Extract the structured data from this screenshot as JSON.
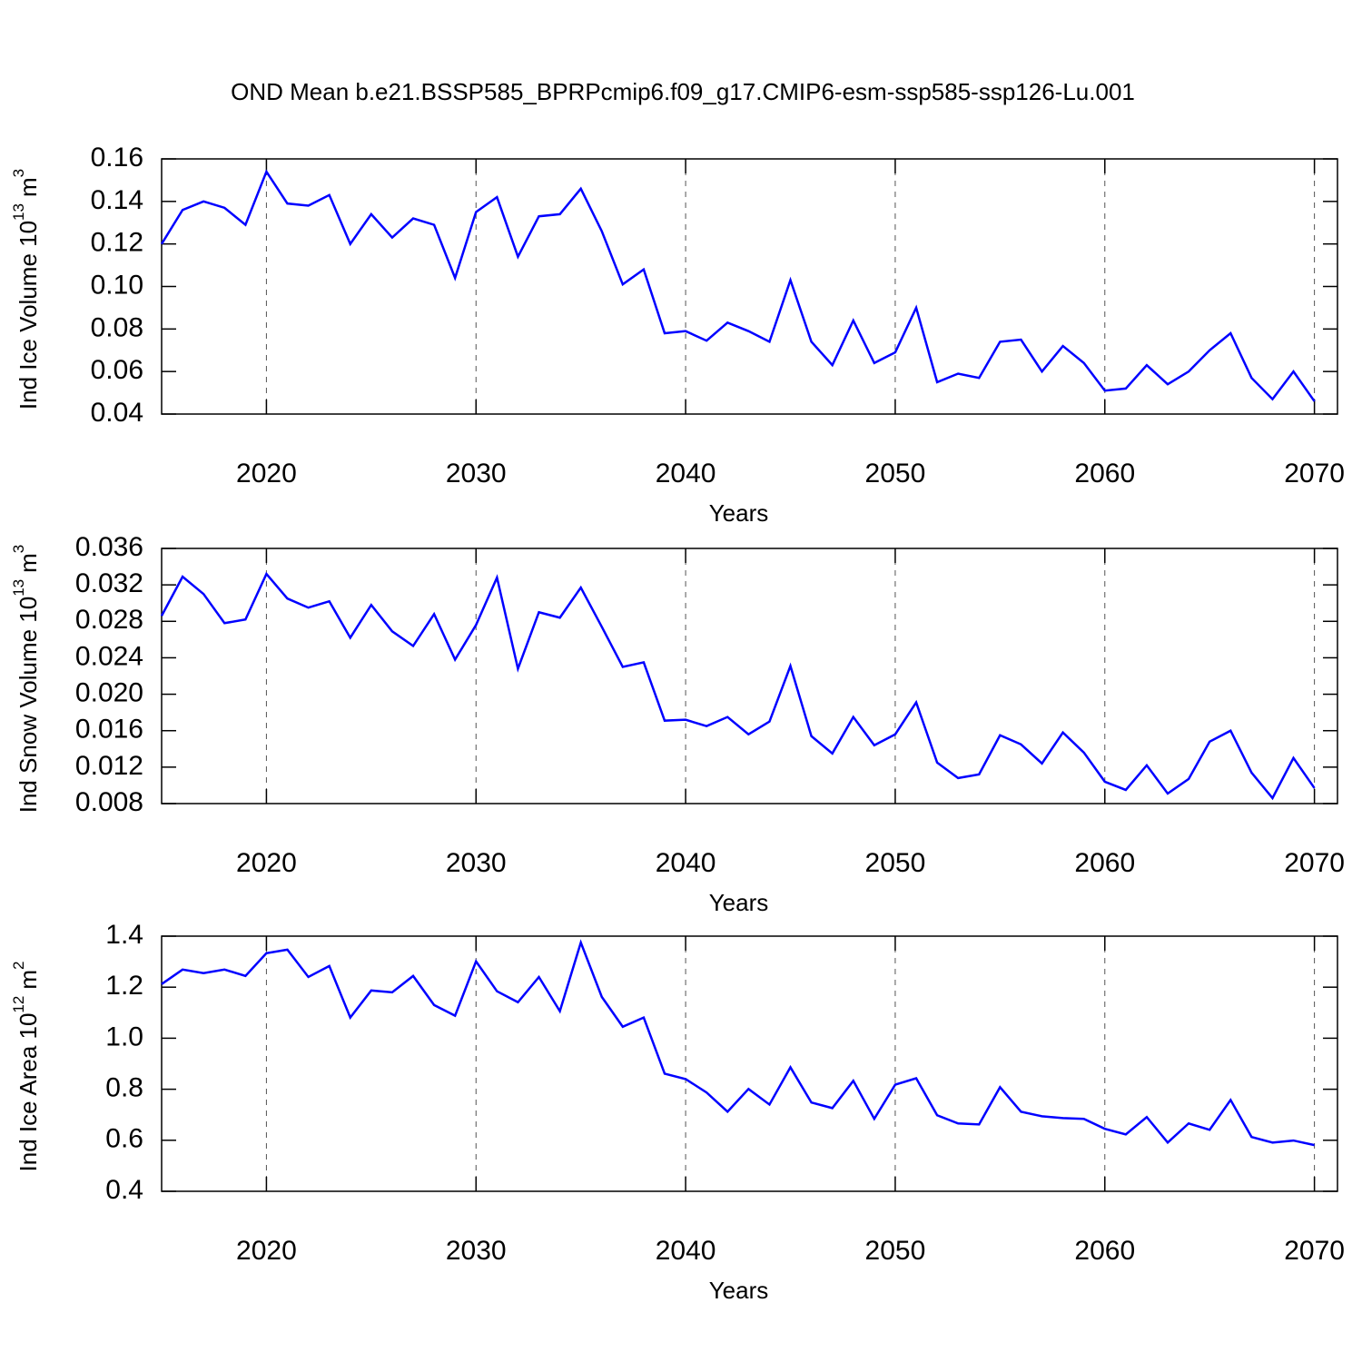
{
  "title": "OND Mean b.e21.BSSP585_BPRPcmip6.f09_g17.CMIP6-esm-ssp585-ssp126-Lu.001",
  "chart_data": [
    {
      "type": "line",
      "y_label": {
        "text": "Ind Ice Volume 10",
        "exponent": "13",
        "unit": "m",
        "unit_exponent": "3"
      },
      "x_label": "Years",
      "x": [
        2015,
        2016,
        2017,
        2018,
        2019,
        2020,
        2021,
        2022,
        2023,
        2024,
        2025,
        2026,
        2027,
        2028,
        2029,
        2030,
        2031,
        2032,
        2033,
        2034,
        2035,
        2036,
        2037,
        2038,
        2039,
        2040,
        2041,
        2042,
        2043,
        2044,
        2045,
        2046,
        2047,
        2048,
        2049,
        2050,
        2051,
        2052,
        2053,
        2054,
        2055,
        2056,
        2057,
        2058,
        2059,
        2060,
        2061,
        2062,
        2063,
        2064,
        2065,
        2066,
        2067,
        2068,
        2069,
        2070
      ],
      "values": [
        0.12,
        0.136,
        0.14,
        0.137,
        0.129,
        0.154,
        0.139,
        0.138,
        0.143,
        0.12,
        0.134,
        0.123,
        0.132,
        0.129,
        0.104,
        0.135,
        0.142,
        0.114,
        0.133,
        0.134,
        0.146,
        0.126,
        0.101,
        0.108,
        0.078,
        0.079,
        0.0745,
        0.083,
        0.079,
        0.074,
        0.103,
        0.074,
        0.063,
        0.084,
        0.064,
        0.069,
        0.09,
        0.055,
        0.059,
        0.057,
        0.074,
        0.075,
        0.06,
        0.072,
        0.064,
        0.051,
        0.052,
        0.063,
        0.054,
        0.06,
        0.07,
        0.078,
        0.057,
        0.047,
        0.06,
        0.046
      ],
      "color": "#0000ff",
      "xlim": [
        2015,
        2071.1
      ],
      "xticks": [
        2020,
        2030,
        2040,
        2050,
        2060,
        2070
      ],
      "ylim": [
        0.04,
        0.16
      ],
      "yticks": [
        0.04,
        0.06,
        0.08,
        {
          "value": 0.1,
          "label": "0.10"
        },
        0.12,
        0.14,
        0.16
      ],
      "grid": true
    },
    {
      "type": "line",
      "y_label": {
        "text": "Ind Snow Volume 10",
        "exponent": "13",
        "unit": "m",
        "unit_exponent": "3"
      },
      "x_label": "Years",
      "x": [
        2015,
        2016,
        2017,
        2018,
        2019,
        2020,
        2021,
        2022,
        2023,
        2024,
        2025,
        2026,
        2027,
        2028,
        2029,
        2030,
        2031,
        2032,
        2033,
        2034,
        2035,
        2036,
        2037,
        2038,
        2039,
        2040,
        2041,
        2042,
        2043,
        2044,
        2045,
        2046,
        2047,
        2048,
        2049,
        2050,
        2051,
        2052,
        2053,
        2054,
        2055,
        2056,
        2057,
        2058,
        2059,
        2060,
        2061,
        2062,
        2063,
        2064,
        2065,
        2066,
        2067,
        2068,
        2069,
        2070
      ],
      "values": [
        0.0286,
        0.0329,
        0.031,
        0.0278,
        0.0282,
        0.0332,
        0.0305,
        0.0295,
        0.0302,
        0.0262,
        0.0298,
        0.0269,
        0.0253,
        0.0288,
        0.0238,
        0.0276,
        0.0328,
        0.0228,
        0.029,
        0.0284,
        0.0317,
        0.0274,
        0.023,
        0.0235,
        0.0171,
        0.0172,
        0.0165,
        0.0175,
        0.0156,
        0.017,
        0.0231,
        0.0154,
        0.0135,
        0.0175,
        0.0144,
        0.0156,
        0.0191,
        0.0125,
        0.0108,
        0.0112,
        0.0155,
        0.0145,
        0.0124,
        0.0158,
        0.0136,
        0.0104,
        0.0095,
        0.0122,
        0.0091,
        0.0107,
        0.0148,
        0.016,
        0.0114,
        0.0086,
        0.013,
        0.0097
      ],
      "color": "#0000ff",
      "xlim": [
        2015,
        2071.1
      ],
      "xticks": [
        2020,
        2030,
        2040,
        2050,
        2060,
        2070
      ],
      "ylim": [
        0.008,
        0.036
      ],
      "yticks": [
        0.008,
        0.012,
        0.016,
        {
          "value": 0.02,
          "label": "0.020"
        },
        0.024,
        0.028,
        0.032,
        0.036
      ],
      "grid": true
    },
    {
      "type": "line",
      "y_label": {
        "text": "Ind Ice Area 10",
        "exponent": "12",
        "unit": "m",
        "unit_exponent": "2"
      },
      "x_label": "Years",
      "x": [
        2015,
        2016,
        2017,
        2018,
        2019,
        2020,
        2021,
        2022,
        2023,
        2024,
        2025,
        2026,
        2027,
        2028,
        2029,
        2030,
        2031,
        2032,
        2033,
        2034,
        2035,
        2036,
        2037,
        2038,
        2039,
        2040,
        2041,
        2042,
        2043,
        2044,
        2045,
        2046,
        2047,
        2048,
        2049,
        2050,
        2051,
        2052,
        2053,
        2054,
        2055,
        2056,
        2057,
        2058,
        2059,
        2060,
        2061,
        2062,
        2063,
        2064,
        2065,
        2066,
        2067,
        2068,
        2069,
        2070
      ],
      "values": [
        1.212,
        1.269,
        1.255,
        1.269,
        1.244,
        1.333,
        1.347,
        1.24,
        1.283,
        1.081,
        1.187,
        1.18,
        1.244,
        1.13,
        1.088,
        1.301,
        1.184,
        1.141,
        1.24,
        1.106,
        1.375,
        1.162,
        1.045,
        1.081,
        0.861,
        0.84,
        0.787,
        0.712,
        0.801,
        0.74,
        0.886,
        0.748,
        0.726,
        0.833,
        0.684,
        0.818,
        0.843,
        0.698,
        0.666,
        0.662,
        0.808,
        0.712,
        0.694,
        0.687,
        0.684,
        0.645,
        0.623,
        0.691,
        0.591,
        0.666,
        0.641,
        0.758,
        0.613,
        0.591,
        0.599,
        0.581
      ],
      "color": "#0000ff",
      "xlim": [
        2015,
        2071.1
      ],
      "xticks": [
        2020,
        2030,
        2040,
        2050,
        2060,
        2070
      ],
      "ylim": [
        0.4,
        1.4
      ],
      "yticks": [
        0.4,
        0.6,
        0.8,
        {
          "value": 1,
          "label": "1.0"
        },
        1.2,
        1.4
      ],
      "grid": true
    }
  ]
}
